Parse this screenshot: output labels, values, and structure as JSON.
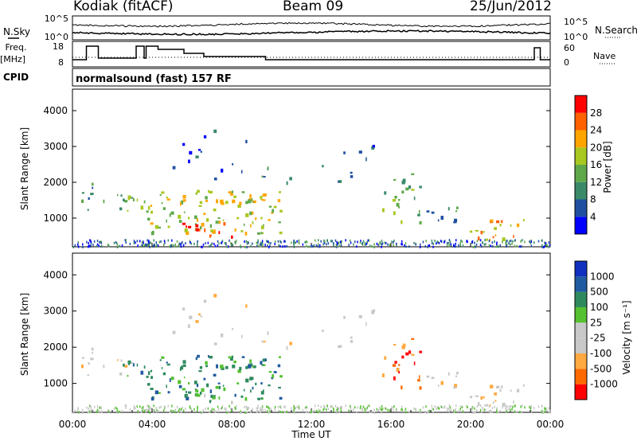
{
  "header": {
    "station": "Kodiak (fitACF)",
    "beam": "Beam 09",
    "date": "25/Jun/2012"
  },
  "panels": {
    "nsky_label": "N.Sky",
    "nsearch_label": "N.Search",
    "freq_label_top": "Freq.",
    "freq_label_bottom": "[MHz]",
    "nave_label": "Nave",
    "cpid_label": "CPID",
    "cpid_value": "normalsound (fast) 157 RF",
    "noise_ticks": [
      "10^5",
      "10^0"
    ],
    "noise_ticks_right": [
      "10^5",
      "10^0"
    ],
    "freq_ticks": [
      "18",
      "8"
    ],
    "nave_ticks": [
      "60",
      "0"
    ]
  },
  "colors": {
    "power": [
      "#0000ff",
      "#1f4fa0",
      "#3a8a6a",
      "#5fa84a",
      "#a8c820",
      "#ffa500",
      "#ff6000",
      "#ff0000"
    ],
    "velocity": [
      "#ff0000",
      "#ff6a00",
      "#ffaa40",
      "#c8c8c8",
      "#c8c8c8",
      "#55c030",
      "#2e8a5e",
      "#205aa0",
      "#1030c0"
    ]
  },
  "chart_data": [
    {
      "type": "heatmap",
      "name": "power",
      "ylabel": "Slant Range [km]",
      "yticks": [
        1000,
        2000,
        3000,
        4000
      ],
      "ylim": [
        200,
        4600
      ],
      "xlim": [
        0,
        24
      ],
      "colorbar_label": "Power [dB]",
      "colorbar_ticks": [
        4,
        8,
        12,
        16,
        20,
        24,
        28
      ],
      "colorbar_range": [
        0,
        32
      ]
    },
    {
      "type": "heatmap",
      "name": "velocity",
      "ylabel": "Slant Range [km]",
      "yticks": [
        1000,
        2000,
        3000,
        4000
      ],
      "ylim": [
        200,
        4600
      ],
      "xlim": [
        0,
        24
      ],
      "colorbar_label": "Velocity [m s⁻¹]",
      "colorbar_ticks": [
        "-1000",
        "-500",
        "-100",
        "-25",
        "25",
        "100",
        "500",
        "1000"
      ]
    }
  ],
  "xaxis": {
    "label": "Time UT",
    "ticks": [
      "00:00",
      "04:00",
      "08:00",
      "12:00",
      "16:00",
      "20:00",
      "00:00"
    ]
  }
}
